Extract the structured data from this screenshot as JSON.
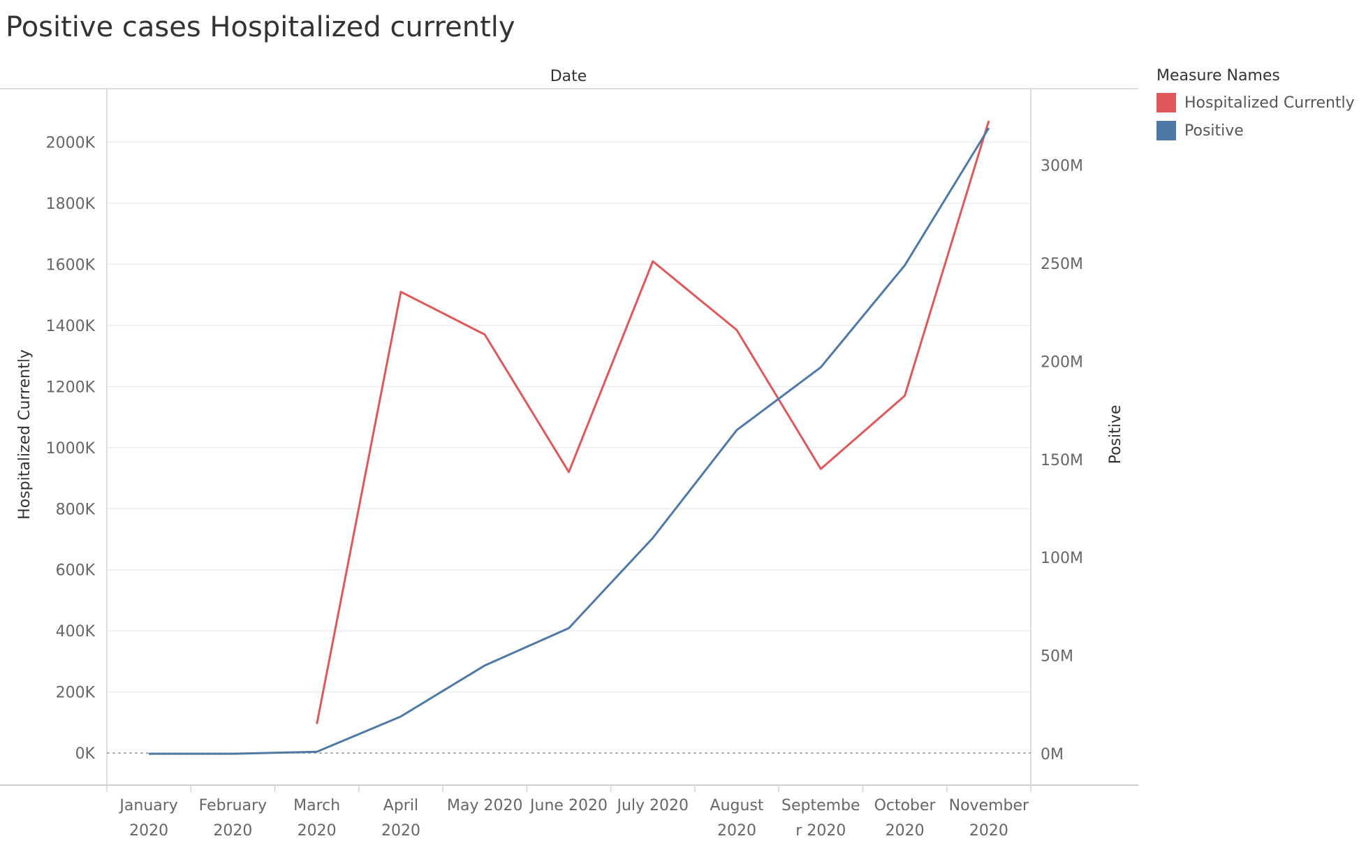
{
  "chart_data": {
    "type": "line",
    "title": "Positive cases Hospitalized currently",
    "top_label": "Date",
    "categories": [
      [
        "January",
        "2020"
      ],
      [
        "February",
        "2020"
      ],
      [
        "March",
        "2020"
      ],
      [
        "April",
        "2020"
      ],
      [
        "May 2020"
      ],
      [
        "June 2020"
      ],
      [
        "July 2020"
      ],
      [
        "August",
        "2020"
      ],
      [
        "Septembe",
        "r 2020"
      ],
      [
        "October",
        "2020"
      ],
      [
        "November",
        "2020"
      ]
    ],
    "y_left": {
      "label": "Hospitalized Currently",
      "range": [
        -105000,
        2175000
      ],
      "ticks": [
        0,
        200000,
        400000,
        600000,
        800000,
        1000000,
        1200000,
        1400000,
        1600000,
        1800000,
        2000000
      ],
      "tick_labels": [
        "0K",
        "200K",
        "400K",
        "600K",
        "800K",
        "1000K",
        "1200K",
        "1400K",
        "1600K",
        "1800K",
        "2000K"
      ]
    },
    "y_right": {
      "label": "Positive",
      "range": [
        -16000000,
        339000000
      ],
      "ticks": [
        0,
        50000000,
        100000000,
        150000000,
        200000000,
        250000000,
        300000000
      ],
      "tick_labels": [
        "0M",
        "50M",
        "100M",
        "150M",
        "200M",
        "250M",
        "300M"
      ]
    },
    "series": [
      {
        "name": "Hospitalized Currently",
        "axis": "left",
        "color": "#e15759",
        "values": [
          null,
          null,
          95000,
          1510000,
          1370000,
          920000,
          1610000,
          1385000,
          930000,
          1170000,
          2070000
        ]
      },
      {
        "name": "Positive",
        "axis": "right",
        "color": "#4e79a7",
        "values": [
          0,
          0,
          1000000,
          19000000,
          45000000,
          64000000,
          110000000,
          165000000,
          197000000,
          249000000,
          319000000
        ]
      }
    ],
    "legend": {
      "title": "Measure Names",
      "position": "right",
      "items": [
        {
          "label": "Hospitalized Currently",
          "color": "#e15759"
        },
        {
          "label": "Positive",
          "color": "#4e79a7"
        }
      ]
    },
    "grid": true
  }
}
